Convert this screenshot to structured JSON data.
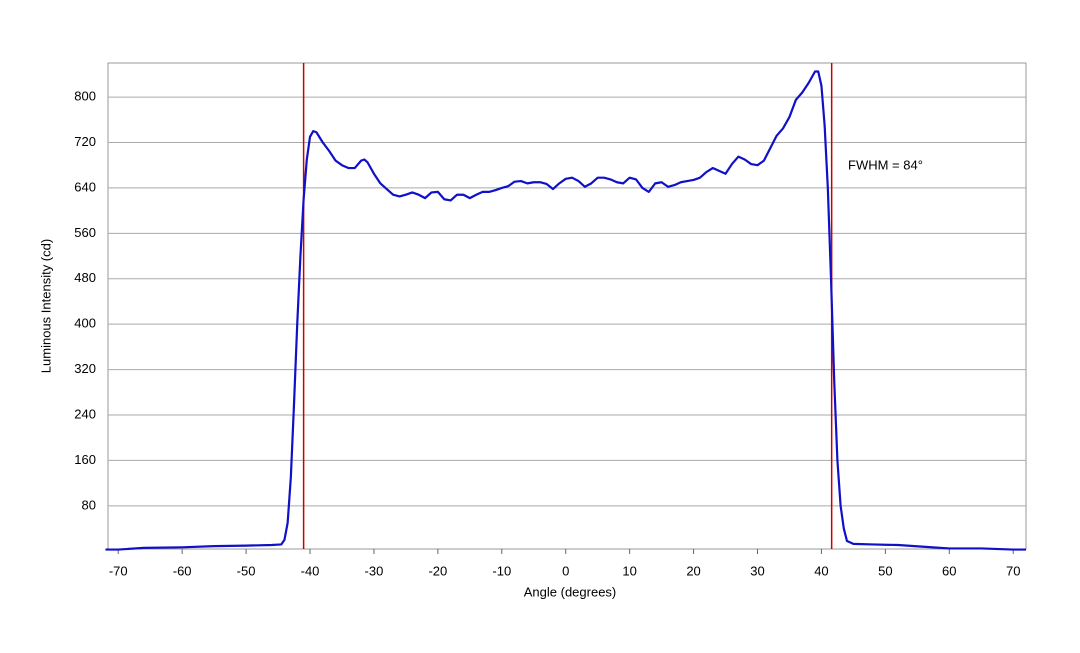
{
  "chart_data": {
    "type": "line",
    "x_label": "Angle (degrees)",
    "y_label": "Luminous Intensity (cd)",
    "annotation": "FWHM = 84°",
    "x": [
      -72,
      -70,
      -66,
      -60,
      -55,
      -50,
      -46,
      -44.5,
      -44,
      -43.5,
      -43,
      -42.5,
      -42,
      -41.5,
      -41,
      -40.5,
      -40,
      -39.5,
      -39,
      -38,
      -37,
      -36,
      -35,
      -34,
      -33,
      -32,
      -31.5,
      -31,
      -30,
      -29,
      -28,
      -27,
      -26,
      -25,
      -24,
      -23,
      -22,
      -21,
      -20,
      -19,
      -18,
      -17,
      -16,
      -15,
      -14,
      -13,
      -12,
      -11,
      -10,
      -9,
      -8,
      -7,
      -6,
      -5,
      -4,
      -3,
      -2,
      -1,
      0,
      1,
      2,
      3,
      4,
      5,
      6,
      7,
      8,
      9,
      10,
      11,
      12,
      13,
      14,
      15,
      16,
      17,
      18,
      19,
      20,
      21,
      22,
      23,
      24,
      25,
      26,
      27,
      28,
      29,
      30,
      31,
      32,
      33,
      34,
      35,
      36,
      37,
      38,
      39,
      39.5,
      40,
      40.5,
      41,
      41.5,
      42,
      42.5,
      43,
      43.5,
      44,
      45,
      48,
      52,
      56,
      60,
      65,
      70,
      72
    ],
    "series": [
      {
        "name": "Luminous Intensity",
        "color": "#1010c8",
        "values": [
          3,
          3,
          6,
          7,
          9,
          10,
          11,
          12,
          20,
          50,
          130,
          260,
          400,
          520,
          620,
          690,
          730,
          740,
          738,
          720,
          705,
          688,
          680,
          675,
          675,
          688,
          690,
          685,
          665,
          648,
          638,
          628,
          625,
          628,
          632,
          628,
          622,
          632,
          633,
          620,
          618,
          628,
          628,
          622,
          628,
          633,
          633,
          636,
          640,
          643,
          651,
          652,
          648,
          650,
          650,
          647,
          638,
          648,
          656,
          658,
          652,
          642,
          648,
          658,
          658,
          655,
          650,
          648,
          658,
          655,
          640,
          633,
          648,
          650,
          642,
          645,
          650,
          652,
          654,
          658,
          668,
          675,
          670,
          665,
          682,
          695,
          690,
          682,
          680,
          688,
          710,
          732,
          745,
          765,
          795,
          808,
          825,
          845,
          845,
          820,
          750,
          640,
          480,
          300,
          160,
          80,
          40,
          18,
          13,
          12,
          11,
          8,
          5,
          5,
          3,
          3
        ]
      }
    ],
    "vlines": [
      -41,
      41.6
    ],
    "vline_color": "#cc0000",
    "xlim": [
      -71.6,
      72
    ],
    "ylim": [
      4,
      860
    ],
    "xticks": [
      -70,
      -60,
      -50,
      -40,
      -30,
      -20,
      -10,
      0,
      10,
      20,
      30,
      40,
      50,
      60,
      70
    ],
    "yticks": [
      80,
      160,
      240,
      320,
      400,
      480,
      560,
      640,
      720,
      800
    ],
    "grid": true
  }
}
